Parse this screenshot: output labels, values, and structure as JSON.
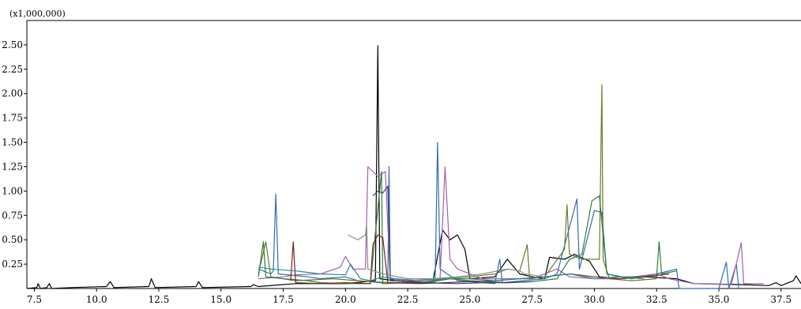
{
  "chart_data": {
    "type": "line",
    "title": "",
    "xlabel": "",
    "ylabel": "",
    "y_multiplier_label": "(x1,000,000)",
    "xlim": [
      7.2,
      38.3
    ],
    "ylim": [
      0,
      2.75
    ],
    "x_ticks": [
      7.5,
      10.0,
      12.5,
      15.0,
      17.5,
      20.0,
      22.5,
      25.0,
      27.5,
      30.0,
      32.5,
      35.0,
      37.5
    ],
    "x_tick_labels": [
      "7.5",
      "10.0",
      "12.5",
      "15.0",
      "17.5",
      "20.0",
      "22.5",
      "25.0",
      "27.5",
      "30.0",
      "32.5",
      "35.0",
      "37.5"
    ],
    "y_ticks": [
      0.25,
      0.5,
      0.75,
      1.0,
      1.25,
      1.5,
      1.75,
      2.0,
      2.25,
      2.5
    ],
    "y_tick_labels": [
      "0.25",
      "0.50",
      "0.75",
      "1.00",
      "1.25",
      "1.50",
      "1.75",
      "2.00",
      "2.25",
      "2.50"
    ],
    "grid": false,
    "legend": "none",
    "series": [
      {
        "color": "#000000",
        "points": [
          [
            7.2,
            0.0
          ],
          [
            7.6,
            0.01
          ],
          [
            7.65,
            0.05
          ],
          [
            7.75,
            0.0
          ],
          [
            8.0,
            0.01
          ],
          [
            8.1,
            0.05
          ],
          [
            8.2,
            0.0
          ],
          [
            9.0,
            0.01
          ],
          [
            10.4,
            0.02
          ],
          [
            10.55,
            0.07
          ],
          [
            10.7,
            0.01
          ],
          [
            12.1,
            0.02
          ],
          [
            12.2,
            0.1
          ],
          [
            12.35,
            0.01
          ],
          [
            14.0,
            0.02
          ],
          [
            14.1,
            0.07
          ],
          [
            14.25,
            0.01
          ],
          [
            16.2,
            0.02
          ],
          [
            16.3,
            0.04
          ],
          [
            16.5,
            0.02
          ],
          [
            18.0,
            0.05
          ],
          [
            20.0,
            0.05
          ],
          [
            21.2,
            0.08
          ],
          [
            21.3,
            2.49
          ],
          [
            21.38,
            0.1
          ],
          [
            22.0,
            0.08
          ],
          [
            23.5,
            0.06
          ],
          [
            23.9,
            0.6
          ],
          [
            24.2,
            0.5
          ],
          [
            24.5,
            0.55
          ],
          [
            24.8,
            0.4
          ],
          [
            25.0,
            0.1
          ],
          [
            26.0,
            0.12
          ],
          [
            26.5,
            0.3
          ],
          [
            27.0,
            0.15
          ],
          [
            27.5,
            0.12
          ],
          [
            28.0,
            0.1
          ],
          [
            28.2,
            0.32
          ],
          [
            28.8,
            0.3
          ],
          [
            29.2,
            0.35
          ],
          [
            29.8,
            0.28
          ],
          [
            30.2,
            0.12
          ],
          [
            31.0,
            0.1
          ],
          [
            32.0,
            0.12
          ],
          [
            33.3,
            0.1
          ],
          [
            34.0,
            0.05
          ],
          [
            36.0,
            0.04
          ],
          [
            37.0,
            0.03
          ],
          [
            37.3,
            0.06
          ],
          [
            37.5,
            0.03
          ],
          [
            38.0,
            0.08
          ],
          [
            38.1,
            0.13
          ],
          [
            38.3,
            0.05
          ]
        ]
      },
      {
        "color": "#2f6db5",
        "points": [
          [
            16.5,
            0.2
          ],
          [
            17.0,
            0.15
          ],
          [
            17.1,
            0.18
          ],
          [
            17.2,
            0.97
          ],
          [
            17.3,
            0.15
          ],
          [
            18.5,
            0.12
          ],
          [
            19.0,
            0.1
          ],
          [
            20.0,
            0.12
          ],
          [
            20.5,
            0.08
          ],
          [
            21.0,
            0.07
          ],
          [
            21.7,
            0.05
          ],
          [
            21.75,
            1.25
          ],
          [
            21.8,
            0.08
          ],
          [
            23.0,
            0.06
          ],
          [
            23.6,
            0.06
          ],
          [
            23.7,
            1.5
          ],
          [
            23.8,
            0.2
          ],
          [
            24.5,
            0.08
          ],
          [
            25.5,
            0.06
          ],
          [
            26.0,
            0.05
          ],
          [
            26.2,
            0.3
          ],
          [
            26.3,
            0.06
          ],
          [
            28.0,
            0.1
          ],
          [
            28.5,
            0.15
          ],
          [
            29.3,
            0.92
          ],
          [
            29.4,
            0.2
          ],
          [
            30.0,
            0.8
          ],
          [
            30.3,
            0.78
          ],
          [
            30.5,
            0.15
          ],
          [
            31.5,
            0.1
          ],
          [
            32.5,
            0.15
          ],
          [
            33.3,
            0.2
          ],
          [
            33.4,
            0.0
          ],
          [
            35.0,
            0.0
          ],
          [
            35.3,
            0.27
          ],
          [
            35.4,
            0.0
          ],
          [
            35.7,
            0.25
          ],
          [
            35.8,
            0.0
          ]
        ]
      },
      {
        "color": "#a45fae",
        "points": [
          [
            16.5,
            0.1
          ],
          [
            17.5,
            0.12
          ],
          [
            18.0,
            0.14
          ],
          [
            19.0,
            0.15
          ],
          [
            19.8,
            0.22
          ],
          [
            20.0,
            0.33
          ],
          [
            20.3,
            0.2
          ],
          [
            20.8,
            0.2
          ],
          [
            20.9,
            1.25
          ],
          [
            21.3,
            1.15
          ],
          [
            21.6,
            1.2
          ],
          [
            21.8,
            0.1
          ],
          [
            22.5,
            0.08
          ],
          [
            23.8,
            0.1
          ],
          [
            24.0,
            1.25
          ],
          [
            24.2,
            0.3
          ],
          [
            24.5,
            0.2
          ],
          [
            25.5,
            0.1
          ],
          [
            26.5,
            0.1
          ],
          [
            27.5,
            0.1
          ],
          [
            28.5,
            0.2
          ],
          [
            29.0,
            0.12
          ],
          [
            30.0,
            0.1
          ],
          [
            31.0,
            0.1
          ],
          [
            32.5,
            0.15
          ],
          [
            33.0,
            0.1
          ],
          [
            34.0,
            0.05
          ],
          [
            35.5,
            0.04
          ],
          [
            35.9,
            0.47
          ],
          [
            36.0,
            0.05
          ],
          [
            36.8,
            0.05
          ]
        ]
      },
      {
        "color": "#6b7a2e",
        "points": [
          [
            16.5,
            0.15
          ],
          [
            16.8,
            0.48
          ],
          [
            17.0,
            0.12
          ],
          [
            18.0,
            0.08
          ],
          [
            19.5,
            0.1
          ],
          [
            20.5,
            0.08
          ],
          [
            21.0,
            0.07
          ],
          [
            22.0,
            0.06
          ],
          [
            23.0,
            0.06
          ],
          [
            24.0,
            0.1
          ],
          [
            25.0,
            0.12
          ],
          [
            26.0,
            0.15
          ],
          [
            26.5,
            0.2
          ],
          [
            27.0,
            0.18
          ],
          [
            27.3,
            0.45
          ],
          [
            27.4,
            0.1
          ],
          [
            28.0,
            0.12
          ],
          [
            28.8,
            0.4
          ],
          [
            28.9,
            0.86
          ],
          [
            29.0,
            0.35
          ],
          [
            29.5,
            0.3
          ],
          [
            30.2,
            0.3
          ],
          [
            30.3,
            2.09
          ],
          [
            30.35,
            0.3
          ],
          [
            30.6,
            0.1
          ],
          [
            31.5,
            0.08
          ],
          [
            32.5,
            0.1
          ]
        ]
      },
      {
        "color": "#2e7d3a",
        "points": [
          [
            16.5,
            0.12
          ],
          [
            16.7,
            0.48
          ],
          [
            16.8,
            0.12
          ],
          [
            17.5,
            0.1
          ],
          [
            18.5,
            0.08
          ],
          [
            19.0,
            0.06
          ],
          [
            20.0,
            0.05
          ],
          [
            21.0,
            0.05
          ],
          [
            21.45,
            1.2
          ],
          [
            21.5,
            0.05
          ],
          [
            22.5,
            0.06
          ],
          [
            23.5,
            0.07
          ],
          [
            24.2,
            0.1
          ],
          [
            25.0,
            0.08
          ],
          [
            26.5,
            0.06
          ],
          [
            27.5,
            0.07
          ],
          [
            28.5,
            0.1
          ],
          [
            29.0,
            0.3
          ],
          [
            29.5,
            0.35
          ],
          [
            29.9,
            0.9
          ],
          [
            30.2,
            0.95
          ],
          [
            30.5,
            0.15
          ],
          [
            31.0,
            0.12
          ],
          [
            32.5,
            0.12
          ],
          [
            32.6,
            0.48
          ],
          [
            32.7,
            0.15
          ],
          [
            33.3,
            0.18
          ]
        ]
      },
      {
        "color": "#7a2323",
        "points": [
          [
            17.8,
            0.08
          ],
          [
            17.9,
            0.48
          ],
          [
            18.0,
            0.06
          ],
          [
            19.0,
            0.05
          ],
          [
            20.0,
            0.06
          ],
          [
            21.0,
            0.05
          ],
          [
            21.1,
            0.45
          ],
          [
            21.3,
            0.55
          ],
          [
            21.5,
            0.52
          ],
          [
            21.7,
            0.06
          ],
          [
            23.0,
            0.05
          ],
          [
            24.0,
            0.06
          ],
          [
            25.0,
            0.07
          ],
          [
            26.0,
            0.08
          ],
          [
            27.0,
            0.1
          ],
          [
            28.0,
            0.12
          ],
          [
            29.0,
            0.15
          ],
          [
            30.0,
            0.12
          ],
          [
            31.0,
            0.1
          ],
          [
            32.0,
            0.12
          ],
          [
            33.0,
            0.15
          ]
        ]
      },
      {
        "color": "#3a3f7a",
        "points": [
          [
            21.1,
            0.95
          ],
          [
            21.3,
            1.0
          ],
          [
            21.5,
            0.98
          ],
          [
            21.7,
            1.05
          ],
          [
            21.8,
            0.1
          ],
          [
            22.0,
            0.08
          ],
          [
            23.0,
            0.06
          ],
          [
            24.5,
            0.05
          ],
          [
            25.5,
            0.06
          ],
          [
            26.5,
            0.06
          ],
          [
            27.5,
            0.07
          ]
        ]
      },
      {
        "color": "#2a8a8a",
        "points": [
          [
            16.5,
            0.22
          ],
          [
            17.0,
            0.2
          ],
          [
            18.0,
            0.18
          ],
          [
            19.0,
            0.15
          ],
          [
            20.0,
            0.14
          ],
          [
            20.2,
            0.25
          ],
          [
            20.6,
            0.1
          ],
          [
            21.0,
            0.08
          ],
          [
            21.5,
            0.12
          ],
          [
            22.0,
            0.1
          ],
          [
            23.0,
            0.08
          ],
          [
            24.0,
            0.1
          ],
          [
            25.0,
            0.1
          ],
          [
            26.0,
            0.08
          ],
          [
            27.0,
            0.1
          ],
          [
            28.0,
            0.12
          ],
          [
            29.0,
            0.15
          ],
          [
            30.0,
            0.1
          ],
          [
            31.0,
            0.12
          ],
          [
            32.0,
            0.1
          ]
        ]
      },
      {
        "color": "#8c8c8c",
        "points": [
          [
            20.1,
            0.55
          ],
          [
            20.5,
            0.5
          ],
          [
            20.8,
            0.55
          ],
          [
            20.85,
            0.65
          ],
          [
            20.9,
            0.2
          ],
          [
            21.5,
            0.15
          ],
          [
            22.5,
            0.1
          ],
          [
            23.5,
            0.1
          ],
          [
            24.5,
            0.12
          ],
          [
            25.5,
            0.15
          ],
          [
            26.5,
            0.2
          ],
          [
            27.0,
            0.18
          ],
          [
            27.2,
            0.15
          ],
          [
            28.0,
            0.12
          ]
        ]
      }
    ]
  }
}
